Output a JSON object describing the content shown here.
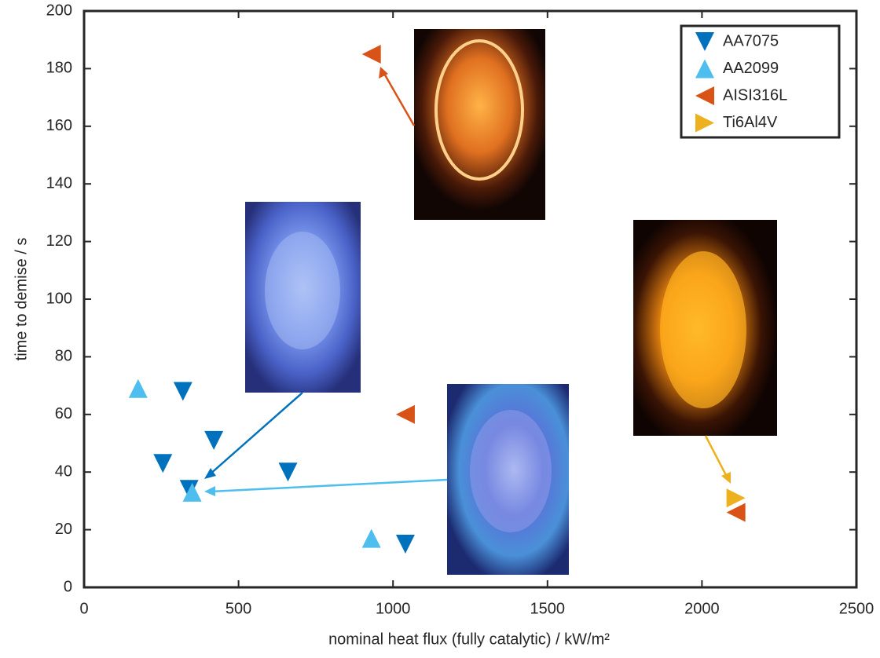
{
  "chart_data": {
    "type": "scatter",
    "xlabel": "nominal heat flux (fully catalytic) / kW/m²",
    "ylabel": "time to demise / s",
    "xlim": [
      0,
      2500
    ],
    "xticks": [
      0,
      500,
      1000,
      1500,
      2000,
      2500
    ],
    "ylim": [
      0,
      200
    ],
    "yticks": [
      0,
      20,
      40,
      60,
      80,
      100,
      120,
      140,
      160,
      180,
      200
    ],
    "legend": "upper right",
    "series": [
      {
        "name": "AA7075",
        "color": "#0072bd",
        "marker": "triangle-down",
        "x": [
          320,
          255,
          420,
          660,
          340,
          1040
        ],
        "values": [
          68,
          43,
          51,
          40,
          34,
          15
        ]
      },
      {
        "name": "AA2099",
        "color": "#4dbeee",
        "marker": "triangle-up",
        "x": [
          175,
          350,
          930
        ],
        "values": [
          69,
          33,
          17
        ]
      },
      {
        "name": "AISI316L",
        "color": "#d95319",
        "marker": "triangle-left",
        "x": [
          930,
          1040,
          2110
        ],
        "values": [
          185,
          60,
          26
        ]
      },
      {
        "name": "Ti6Al4V",
        "color": "#edb120",
        "marker": "triangle-right",
        "x": [
          2110
        ],
        "values": [
          31
        ]
      }
    ]
  }
}
